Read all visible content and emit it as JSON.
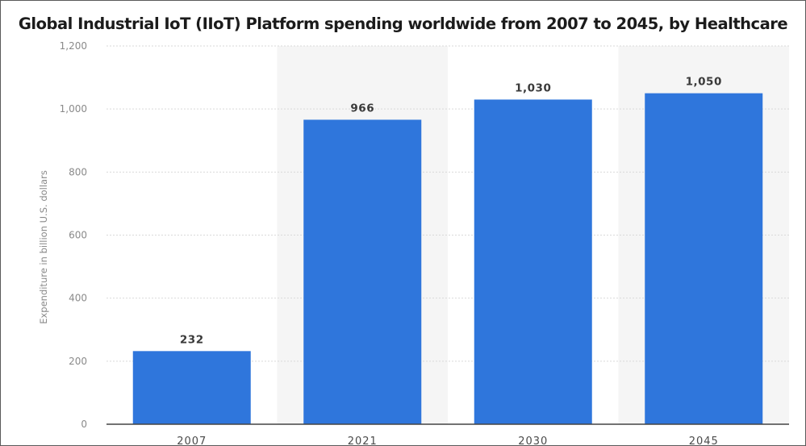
{
  "chart_data": {
    "type": "bar",
    "title": "Global Industrial IoT (IIoT) Platform spending worldwide from 2007 to 2045, by Healthcare",
    "xlabel": "",
    "ylabel": "Expenditure in billion U.S. dollars",
    "categories": [
      "2007",
      "2021",
      "2030",
      "2045"
    ],
    "values": [
      232,
      966,
      1030,
      1050
    ],
    "data_labels": [
      "232",
      "966",
      "1,030",
      "1,050"
    ],
    "ylim": [
      0,
      1200
    ],
    "yticks": [
      0,
      200,
      400,
      600,
      800,
      1000,
      1200
    ],
    "ytick_labels": [
      "0",
      "200",
      "400",
      "600",
      "800",
      "1,000",
      "1,200"
    ],
    "grid": true,
    "bar_color": "#2f76dc",
    "band_color": "#f5f5f5",
    "gridline_color": "#d9d9d9"
  }
}
